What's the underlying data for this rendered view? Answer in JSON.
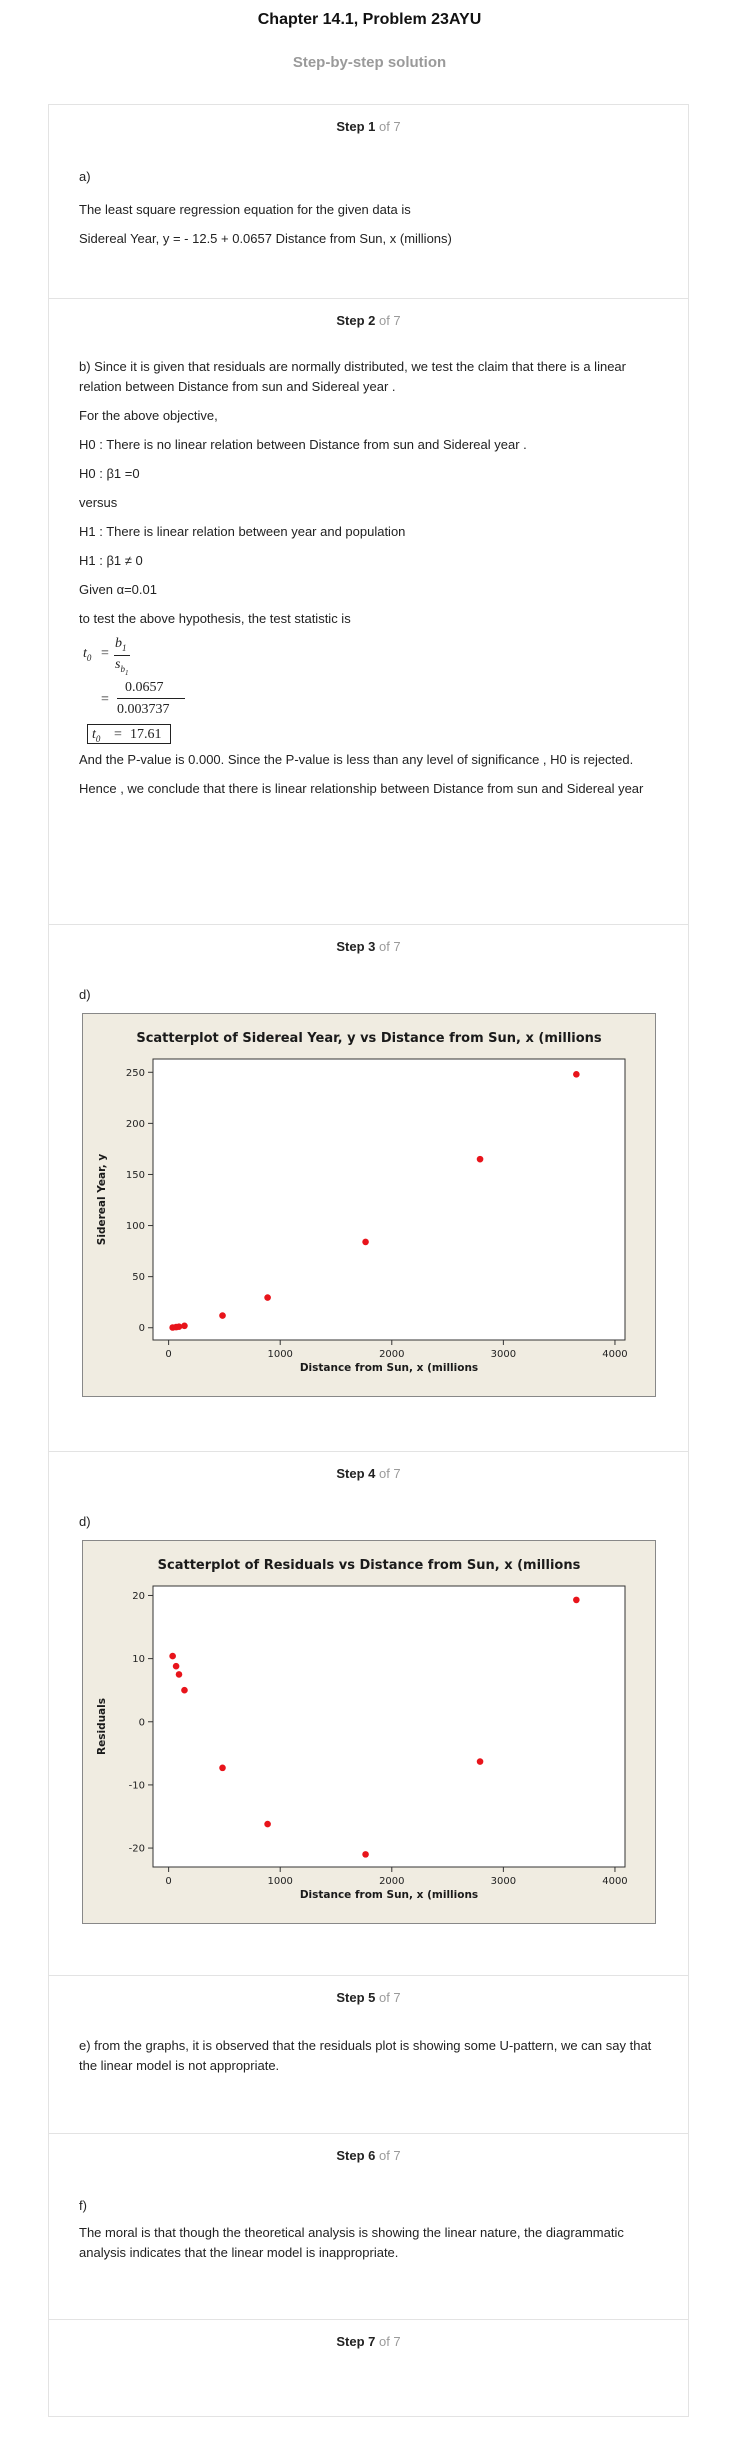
{
  "header": {
    "title": "Chapter 14.1, Problem 23AYU",
    "subtitle": "Step-by-step solution"
  },
  "steps": [
    {
      "num": "Step 1",
      "of": " of 7",
      "paras": [
        "a)",
        "The least square regression equation for the given data is",
        "Sidereal Year, y = - 12.5 + 0.0657 Distance from Sun, x (millions)"
      ]
    },
    {
      "num": "Step 2",
      "of": " of 7",
      "paras": [
        "b) Since it is given that residuals are normally distributed, we test the claim that there is a linear relation between Distance from sun and Sidereal year .",
        "For the above objective,",
        "H0 : There is no linear relation between Distance from sun and Sidereal year .",
        "H0 : β1 =0",
        "versus",
        "H1 : There is linear relation between year and population",
        "H1 : β1 ≠ 0",
        "Given α=0.01",
        "to test the above hypothesis, the test statistic is"
      ],
      "formula": {
        "t0": "t",
        "sub0": "0",
        "eq": "=",
        "num1": "b",
        "num1sub": "1",
        "den1": "s",
        "den1sub": "b",
        "den1subsub": "1",
        "num2": "0.0657",
        "den2": "0.003737",
        "result": "17.61"
      },
      "after": [
        "And the P-value is 0.000. Since the P-value is less than any level of significance , H0 is rejected.",
        "Hence , we conclude that there is linear relationship between Distance from sun and Sidereal year"
      ]
    },
    {
      "num": "Step 3",
      "of": " of 7",
      "paras": [
        "d)"
      ]
    },
    {
      "num": "Step 4",
      "of": " of 7",
      "paras": [
        "d)"
      ]
    },
    {
      "num": "Step 5",
      "of": " of 7",
      "paras": [
        "e) from the graphs, it is observed that the residuals plot is showing some U-pattern, we can say that the linear model is not appropriate."
      ]
    },
    {
      "num": "Step 6",
      "of": " of 7",
      "paras": [
        "f)",
        "The moral is that though the theoretical analysis is showing the linear nature, the diagrammatic analysis indicates that the linear model is inappropriate."
      ]
    },
    {
      "num": "Step 7",
      "of": " of 7",
      "paras": []
    }
  ],
  "chart_data": [
    {
      "type": "scatter",
      "title": "Scatterplot of Sidereal Year, y vs Distance from Sun, x (millions",
      "xlabel": "Distance from Sun, x (millions",
      "ylabel": "Sidereal Year, y",
      "xlim": [
        -140,
        4090
      ],
      "ylim": [
        -12,
        263
      ],
      "xticks": [
        0,
        1000,
        2000,
        3000,
        4000
      ],
      "yticks": [
        0,
        50,
        100,
        150,
        200,
        250
      ],
      "grid": false,
      "point_color": "#e8141b",
      "x": [
        36,
        67,
        93,
        142,
        483,
        887,
        1765,
        2791,
        3654
      ],
      "y": [
        0.24,
        0.62,
        1.0,
        1.9,
        11.9,
        29.5,
        84.0,
        165.0,
        248.0
      ]
    },
    {
      "type": "scatter",
      "title": "Scatterplot of Residuals vs Distance from Sun, x (millions",
      "xlabel": "Distance from Sun, x (millions",
      "ylabel": "Residuals",
      "xlim": [
        -140,
        4090
      ],
      "ylim": [
        -23,
        21.5
      ],
      "xticks": [
        0,
        1000,
        2000,
        3000,
        4000
      ],
      "yticks": [
        -20,
        -10,
        0,
        10,
        20
      ],
      "grid": false,
      "point_color": "#e8141b",
      "x": [
        36,
        67,
        93,
        142,
        483,
        887,
        1765,
        2791,
        3654
      ],
      "y": [
        10.4,
        8.8,
        7.5,
        5.0,
        -7.3,
        -16.2,
        -21.0,
        -6.3,
        19.3
      ]
    }
  ]
}
